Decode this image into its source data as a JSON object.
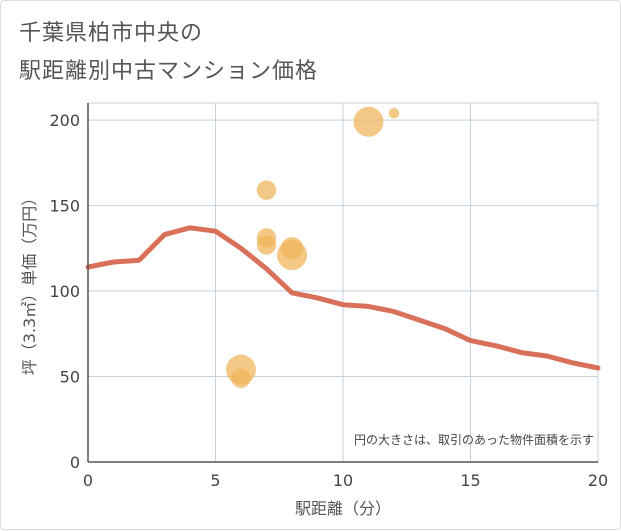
{
  "title": {
    "line1": "千葉県柏市中央の",
    "line2": "駅距離別中古マンション価格"
  },
  "chart_data": {
    "type": "scatter",
    "xlabel": "駅距離（分）",
    "ylabel": "坪（3.3㎡）単価（万円）",
    "xlim": [
      0,
      20
    ],
    "ylim": [
      0,
      210
    ],
    "xticks": [
      0,
      5,
      10,
      15,
      20
    ],
    "yticks": [
      0,
      50,
      100,
      150,
      200
    ],
    "grid": true,
    "note": "円の大きさは、取引のあった物件面積を示す",
    "bubbles": [
      {
        "x": 6,
        "y": 54,
        "size": 1.0
      },
      {
        "x": 6,
        "y": 49,
        "size": 0.65
      },
      {
        "x": 7,
        "y": 159,
        "size": 0.65
      },
      {
        "x": 7,
        "y": 131,
        "size": 0.65
      },
      {
        "x": 7,
        "y": 127,
        "size": 0.65
      },
      {
        "x": 8,
        "y": 121,
        "size": 1.0
      },
      {
        "x": 8,
        "y": 125,
        "size": 0.75
      },
      {
        "x": 11,
        "y": 199,
        "size": 1.0
      },
      {
        "x": 12,
        "y": 204,
        "size": 0.35
      }
    ],
    "series": [
      {
        "name": "average",
        "color": "#d9705a",
        "x": [
          0,
          1,
          2,
          3,
          4,
          5,
          6,
          7,
          8,
          9,
          10,
          11,
          12,
          13,
          14,
          15,
          16,
          17,
          18,
          19,
          20
        ],
        "values": [
          114,
          117,
          118,
          133,
          137,
          135,
          125,
          113,
          99,
          96,
          92,
          91,
          88,
          83,
          78,
          71,
          68,
          64,
          62,
          58,
          55
        ]
      }
    ],
    "colors": {
      "bubble": "#f0b45a",
      "grid": "#c5d3dd",
      "axis": "#555555"
    }
  }
}
